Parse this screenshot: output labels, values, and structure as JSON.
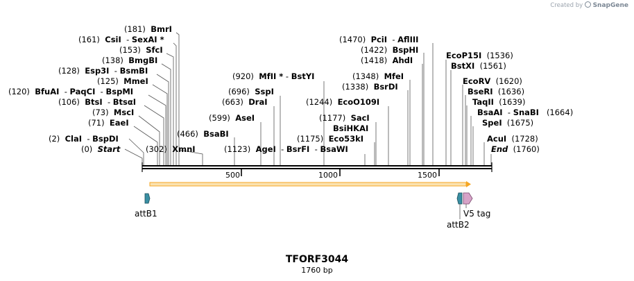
{
  "credit": {
    "text": "Created by",
    "brand": "SnapGene"
  },
  "plasmid": {
    "name": "TFORF3044",
    "length_label": "1760 bp",
    "length": 1760
  },
  "ruler": {
    "ticks": [
      {
        "value": 500,
        "label": "500"
      },
      {
        "value": 1000,
        "label": "1000"
      },
      {
        "value": 1500,
        "label": "1500"
      }
    ]
  },
  "left_sites": [
    {
      "pos": "(181)",
      "names": [
        "BmrI"
      ]
    },
    {
      "pos": "(161)",
      "names": [
        "CsiI",
        "SexAI *"
      ]
    },
    {
      "pos": "(153)",
      "names": [
        "SfcI"
      ]
    },
    {
      "pos": "(138)",
      "names": [
        "BmgBI"
      ]
    },
    {
      "pos": "(128)",
      "names": [
        "Esp3I",
        "BsmBI"
      ]
    },
    {
      "pos": "(125)",
      "names": [
        "MmeI"
      ]
    },
    {
      "pos": "(120)",
      "names": [
        "BfuAI",
        "PaqCI",
        "BspMI"
      ]
    },
    {
      "pos": "(106)",
      "names": [
        "BtsI",
        "BtsαI"
      ]
    },
    {
      "pos": "(73)",
      "names": [
        "MscI"
      ]
    },
    {
      "pos": "(71)",
      "names": [
        "EaeI"
      ]
    },
    {
      "pos": "(2)",
      "names": [
        "ClaI",
        "BspDI"
      ]
    },
    {
      "pos": "(0)",
      "names": [
        "Start"
      ]
    }
  ],
  "mid_sites": [
    {
      "pos": "(302)",
      "names": [
        "XmnI"
      ]
    },
    {
      "pos": "(466)",
      "names": [
        "BsaBI"
      ]
    },
    {
      "pos": "(599)",
      "names": [
        "AseI"
      ]
    },
    {
      "pos": "(663)",
      "names": [
        "DraI"
      ]
    },
    {
      "pos": "(696)",
      "names": [
        "SspI"
      ]
    },
    {
      "pos": "(920)",
      "names": [
        "MfII *",
        "BstYI"
      ]
    },
    {
      "pos": "(1123)",
      "names": [
        "AgeI",
        "BsrFI",
        "BsaWI"
      ]
    },
    {
      "pos": "(1175)",
      "names": [
        "Eco53kI"
      ]
    },
    {
      "pos": "",
      "names": [
        "BsiHKAI"
      ]
    },
    {
      "pos": "(1177)",
      "names": [
        "SacI"
      ]
    },
    {
      "pos": "(1244)",
      "names": [
        "EcoO109I"
      ]
    },
    {
      "pos": "(1338)",
      "names": [
        "BsrDI"
      ]
    },
    {
      "pos": "(1348)",
      "names": [
        "MfeI"
      ]
    },
    {
      "pos": "(1418)",
      "names": [
        "AhdI"
      ]
    },
    {
      "pos": "(1422)",
      "names": [
        "BspHI"
      ]
    },
    {
      "pos": "(1470)",
      "names": [
        "PciI",
        "AflIII"
      ]
    }
  ],
  "right_sites": [
    {
      "pos": "(1536)",
      "names": [
        "EcoP15I"
      ]
    },
    {
      "pos": "(1561)",
      "names": [
        "BstXI"
      ]
    },
    {
      "pos": "(1620)",
      "names": [
        "EcoRV"
      ]
    },
    {
      "pos": "(1636)",
      "names": [
        "BseRI"
      ]
    },
    {
      "pos": "(1639)",
      "names": [
        "TaqII"
      ]
    },
    {
      "pos": "(1664)",
      "names": [
        "BsaAI",
        "SnaBI"
      ]
    },
    {
      "pos": "(1675)",
      "names": [
        "SpeI"
      ]
    },
    {
      "pos": "(1728)",
      "names": [
        "AcuI"
      ]
    },
    {
      "pos": "(1760)",
      "names": [
        "End"
      ]
    }
  ],
  "features": [
    {
      "name": "attB1",
      "color": "#3a8fa3"
    },
    {
      "name": "attB2",
      "color": "#3a8fa3"
    },
    {
      "name": "V5 tag",
      "color": "#d7a3c8"
    }
  ],
  "colors": {
    "orf": "#f5a623",
    "orf_fill": "#fbe2b0",
    "backbone": "#000000"
  }
}
